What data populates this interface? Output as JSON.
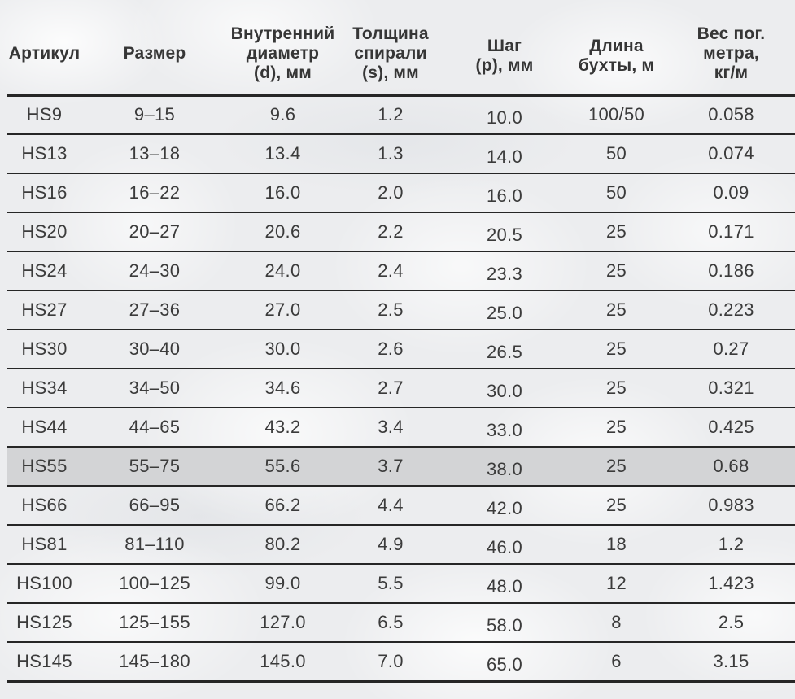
{
  "colors": {
    "background": "#ecedef",
    "rule_line": "#262626",
    "text": "#3b3b3b",
    "highlight_row": "#d3d4d6"
  },
  "table": {
    "headers": [
      "Артикул",
      "Размер",
      "Внутренний\nдиаметр\n(d), мм",
      "Толщина\nспирали\n(s), мм",
      "Шаг\n(p), мм",
      "Длина\nбухты, м",
      "Вес пог.\nметра,\nкг/м"
    ],
    "column_keys": [
      "article",
      "size",
      "inner-diameter",
      "spiral-thickness",
      "pitch",
      "coil-length",
      "weight"
    ],
    "rows": [
      {
        "cells": [
          "HS9",
          "9–15",
          "9.6",
          "1.2",
          "10.0",
          "100/50",
          "0.058"
        ],
        "highlighted": false
      },
      {
        "cells": [
          "HS13",
          "13–18",
          "13.4",
          "1.3",
          "14.0",
          "50",
          "0.074"
        ],
        "highlighted": false
      },
      {
        "cells": [
          "HS16",
          "16–22",
          "16.0",
          "2.0",
          "16.0",
          "50",
          "0.09"
        ],
        "highlighted": false
      },
      {
        "cells": [
          "HS20",
          "20–27",
          "20.6",
          "2.2",
          "20.5",
          "25",
          "0.171"
        ],
        "highlighted": false
      },
      {
        "cells": [
          "HS24",
          "24–30",
          "24.0",
          "2.4",
          "23.3",
          "25",
          "0.186"
        ],
        "highlighted": false
      },
      {
        "cells": [
          "HS27",
          "27–36",
          "27.0",
          "2.5",
          "25.0",
          "25",
          "0.223"
        ],
        "highlighted": false
      },
      {
        "cells": [
          "HS30",
          "30–40",
          "30.0",
          "2.6",
          "26.5",
          "25",
          "0.27"
        ],
        "highlighted": false
      },
      {
        "cells": [
          "HS34",
          "34–50",
          "34.6",
          "2.7",
          "30.0",
          "25",
          "0.321"
        ],
        "highlighted": false
      },
      {
        "cells": [
          "HS44",
          "44–65",
          "43.2",
          "3.4",
          "33.0",
          "25",
          "0.425"
        ],
        "highlighted": false
      },
      {
        "cells": [
          "HS55",
          "55–75",
          "55.6",
          "3.7",
          "38.0",
          "25",
          "0.68"
        ],
        "highlighted": true
      },
      {
        "cells": [
          "HS66",
          "66–95",
          "66.2",
          "4.4",
          "42.0",
          "25",
          "0.983"
        ],
        "highlighted": false
      },
      {
        "cells": [
          "HS81",
          "81–110",
          "80.2",
          "4.9",
          "46.0",
          "18",
          "1.2"
        ],
        "highlighted": false
      },
      {
        "cells": [
          "HS100",
          "100–125",
          "99.0",
          "5.5",
          "48.0",
          "12",
          "1.423"
        ],
        "highlighted": false
      },
      {
        "cells": [
          "HS125",
          "125–155",
          "127.0",
          "6.5",
          "58.0",
          "8",
          "2.5"
        ],
        "highlighted": false
      },
      {
        "cells": [
          "HS145",
          "145–180",
          "145.0",
          "7.0",
          "65.0",
          "6",
          "3.15"
        ],
        "highlighted": false
      }
    ]
  }
}
